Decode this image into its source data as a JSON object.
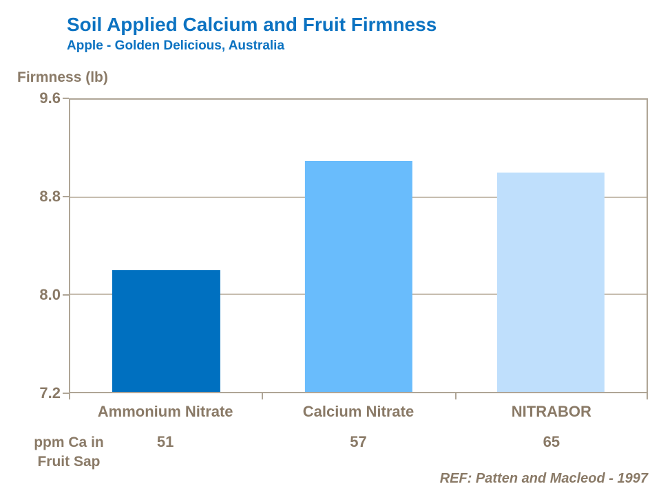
{
  "header": {
    "title": "Soil Applied Calcium and Fruit Firmness",
    "subtitle": "Apple - Golden Delicious, Australia"
  },
  "chart_data": {
    "type": "bar",
    "title": "Soil Applied Calcium and Fruit Firmness",
    "subtitle": "Apple - Golden Delicious, Australia",
    "ylabel": "Firmness (lb)",
    "xlabel": "",
    "categories": [
      "Ammonium Nitrate",
      "Calcium Nitrate",
      "NITRABOR"
    ],
    "values": [
      8.2,
      9.1,
      9.0
    ],
    "bar_colors": [
      "#0070c0",
      "#69bcfc",
      "#bfdffc"
    ],
    "ylim": [
      7.2,
      9.6
    ],
    "yticks": [
      9.6,
      8.8,
      8.0,
      7.2
    ],
    "grid": "horizontal-inner-ticks-only",
    "legend": "none"
  },
  "x_annotation": {
    "label_line1": "ppm Ca in",
    "label_line2": "Fruit Sap",
    "values": [
      "51",
      "57",
      "65"
    ]
  },
  "footer": {
    "reference": "REF: Patten and Macleod - 1997"
  },
  "colors": {
    "title_blue": "#0b72c1",
    "label_taupe": "#8a7a67",
    "axis_line": "#afa596",
    "gridline": "#c6bdaf",
    "background": "#ffffff"
  }
}
